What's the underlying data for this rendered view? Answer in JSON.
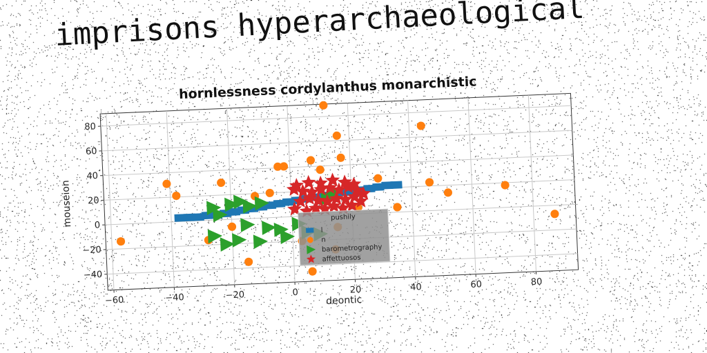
{
  "figure_title": "imprisons hyperarchaeological",
  "chart_data": {
    "type": "scatter",
    "title": "hornlessness cordylanthus monarchistic",
    "xlabel": "deontic",
    "ylabel": "mouseion",
    "xlim": [
      -62,
      94
    ],
    "ylim": [
      -53,
      90
    ],
    "xticks": [
      -60,
      -40,
      -20,
      0,
      20,
      40,
      60,
      80
    ],
    "yticks": [
      -40,
      -20,
      0,
      20,
      40,
      60,
      80
    ],
    "grid": true,
    "legend": {
      "title": "pushily",
      "placement": "lower-center"
    },
    "series": [
      {
        "name": "l",
        "marker": "square",
        "color": "#1f77b4",
        "points": [
          [
            -37,
            3
          ],
          [
            -34,
            3
          ],
          [
            -31,
            3
          ],
          [
            -28,
            4
          ],
          [
            -25,
            4
          ],
          [
            -22,
            5
          ],
          [
            -19,
            6
          ],
          [
            -16,
            7
          ],
          [
            -13,
            8
          ],
          [
            -10,
            9
          ],
          [
            -7,
            10
          ],
          [
            -4,
            11
          ],
          [
            -1,
            12
          ],
          [
            2,
            13
          ],
          [
            5,
            14
          ],
          [
            8,
            15
          ],
          [
            11,
            16
          ],
          [
            14,
            17
          ],
          [
            17,
            18
          ],
          [
            20,
            18
          ],
          [
            23,
            19
          ],
          [
            26,
            20
          ],
          [
            29,
            21
          ],
          [
            32,
            22
          ],
          [
            35,
            22
          ]
        ]
      },
      {
        "name": "n",
        "marker": "circle",
        "color": "#ff7f0e",
        "points": [
          [
            -57,
            -14
          ],
          [
            -41,
            31
          ],
          [
            -38,
            21
          ],
          [
            -23,
            30
          ],
          [
            -20,
            -6
          ],
          [
            -28,
            -16
          ],
          [
            -15,
            -35
          ],
          [
            -12,
            18
          ],
          [
            -7,
            20
          ],
          [
            -4,
            41
          ],
          [
            -2,
            41
          ],
          [
            3,
            -20
          ],
          [
            6,
            -45
          ],
          [
            7,
            45
          ],
          [
            10,
            37
          ],
          [
            12,
            89
          ],
          [
            16,
            64
          ],
          [
            17,
            46
          ],
          [
            14,
            -28
          ],
          [
            15,
            -10
          ],
          [
            22,
            5
          ],
          [
            29,
            28
          ],
          [
            35,
            4
          ],
          [
            44,
            69
          ],
          [
            46,
            23
          ],
          [
            52,
            14
          ],
          [
            71,
            18
          ],
          [
            87,
            -7
          ]
        ]
      },
      {
        "name": "barometrography",
        "marker": "triangle-right",
        "color": "#2ca02c",
        "points": [
          [
            -26,
            10
          ],
          [
            -24,
            4
          ],
          [
            -20,
            12
          ],
          [
            -17,
            14
          ],
          [
            -14,
            10
          ],
          [
            -10,
            12
          ],
          [
            -26,
            -13
          ],
          [
            -22,
            -20
          ],
          [
            -18,
            -17
          ],
          [
            -15,
            -5
          ],
          [
            -11,
            -19
          ],
          [
            -8,
            -8
          ],
          [
            -4,
            -10
          ],
          [
            -2,
            -16
          ],
          [
            2,
            -6
          ],
          [
            5,
            -13
          ],
          [
            9,
            -15
          ],
          [
            12,
            14
          ],
          [
            14,
            18
          ]
        ]
      },
      {
        "name": "affettuosos",
        "marker": "star",
        "color": "#d62728",
        "points": [
          [
            1,
            22
          ],
          [
            4,
            20
          ],
          [
            7,
            19
          ],
          [
            10,
            21
          ],
          [
            13,
            22
          ],
          [
            16,
            20
          ],
          [
            19,
            22
          ],
          [
            22,
            19
          ],
          [
            3,
            12
          ],
          [
            6,
            14
          ],
          [
            9,
            12
          ],
          [
            12,
            11
          ],
          [
            15,
            13
          ],
          [
            18,
            12
          ],
          [
            21,
            14
          ],
          [
            1,
            6
          ],
          [
            5,
            4
          ],
          [
            8,
            6
          ],
          [
            11,
            5
          ],
          [
            14,
            7
          ],
          [
            17,
            5
          ],
          [
            20,
            7
          ],
          [
            2,
            25
          ],
          [
            6,
            27
          ],
          [
            10,
            26
          ],
          [
            14,
            28
          ],
          [
            18,
            26
          ],
          [
            21,
            24
          ],
          [
            23,
            10
          ],
          [
            24,
            16
          ]
        ]
      }
    ]
  }
}
